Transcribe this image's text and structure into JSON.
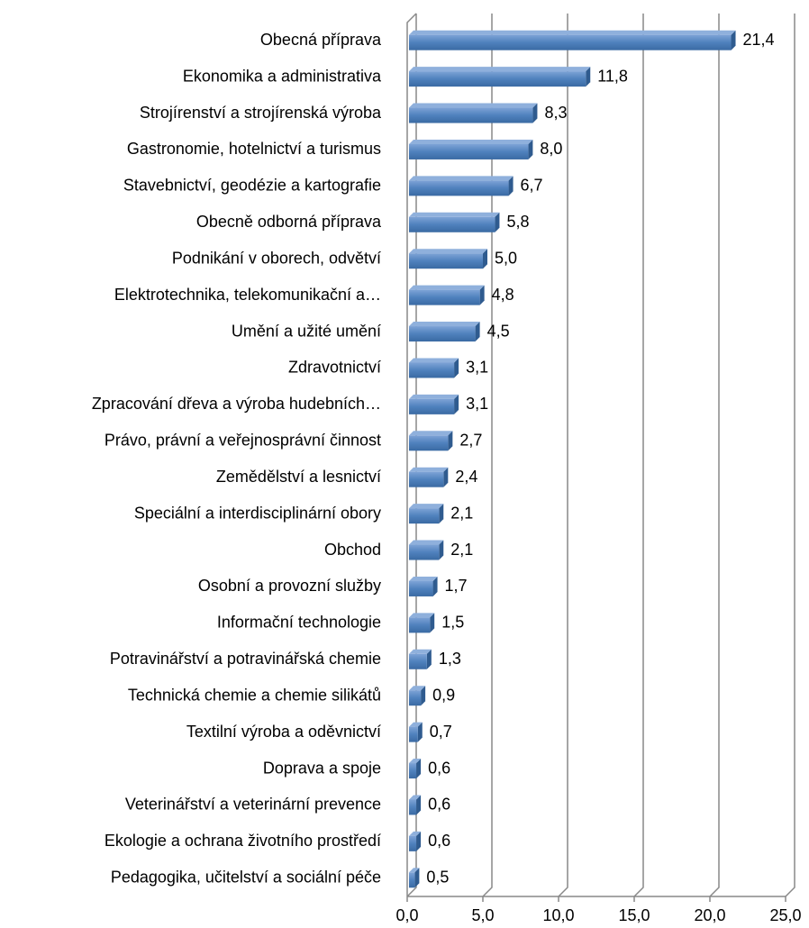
{
  "chart_data": {
    "type": "bar3d",
    "categories": [
      "Obecná příprava",
      "Ekonomika a administrativa",
      "Strojírenství a strojírenská výroba",
      "Gastronomie, hotelnictví a turismus",
      "Stavebnictví, geodézie a kartografie",
      "Obecně odborná příprava",
      "Podnikání v oborech, odvětví",
      "Elektrotechnika, telekomunikační a…",
      "Umění a užité umění",
      "Zdravotnictví",
      "Zpracování dřeva a výroba hudebních…",
      "Právo, právní a veřejnosprávní činnost",
      "Zemědělství a lesnictví",
      "Speciální a interdisciplinární obory",
      "Obchod",
      "Osobní a provozní služby",
      "Informační technologie",
      "Potravinářství a potravinářská chemie",
      "Technická chemie a chemie silikátů",
      "Textilní výroba a oděvnictví",
      "Doprava a spoje",
      "Veterinářství a veterinární prevence",
      "Ekologie a ochrana životního prostředí",
      "Pedagogika, učitelství a sociální péče"
    ],
    "values": [
      21.4,
      11.8,
      8.3,
      8.0,
      6.7,
      5.8,
      5.0,
      4.8,
      4.5,
      3.1,
      3.1,
      2.7,
      2.4,
      2.1,
      2.1,
      1.7,
      1.5,
      1.3,
      0.9,
      0.7,
      0.6,
      0.6,
      0.6,
      0.5
    ],
    "value_labels": [
      "21,4",
      "11,8",
      "8,3",
      "8,0",
      "6,7",
      "5,8",
      "5,0",
      "4,8",
      "4,5",
      "3,1",
      "3,1",
      "2,7",
      "2,4",
      "2,1",
      "2,1",
      "1,7",
      "1,5",
      "1,3",
      "0,9",
      "0,7",
      "0,6",
      "0,6",
      "0,6",
      "0,5"
    ],
    "color": "#4f81bd",
    "xlim": [
      0,
      25
    ],
    "xticks": [
      {
        "value": 0,
        "label": "0,0"
      },
      {
        "value": 5,
        "label": "5,0"
      },
      {
        "value": 10,
        "label": "10,0"
      },
      {
        "value": 15,
        "label": "15,0"
      },
      {
        "value": 20,
        "label": "20,0"
      },
      {
        "value": 25,
        "label": "25,0"
      }
    ],
    "grid": true
  }
}
